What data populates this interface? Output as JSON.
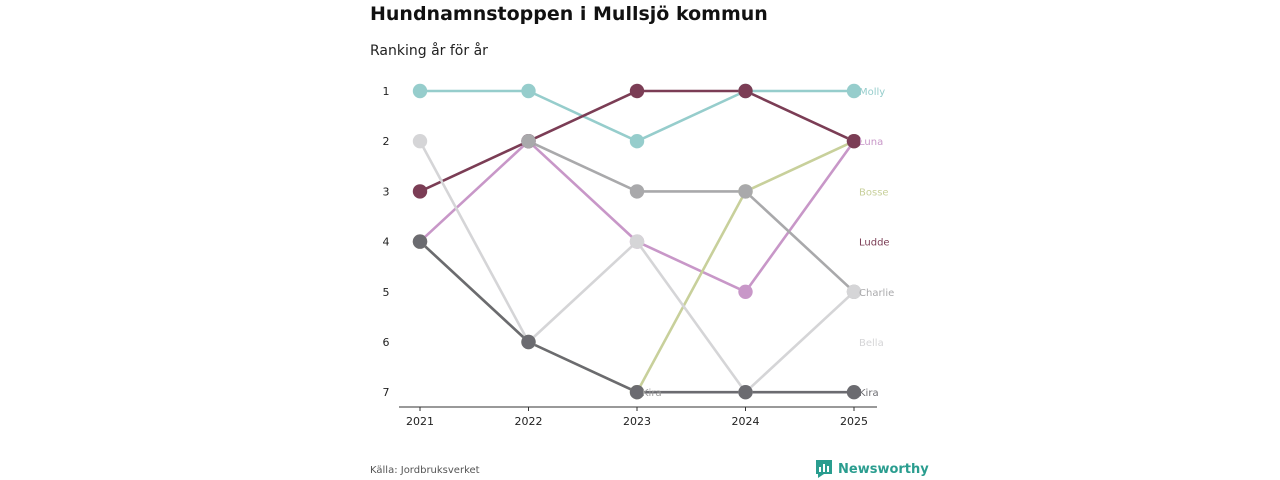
{
  "header": {
    "title": "Hundnamnstoppen i Mullsjö kommun",
    "subtitle": "Ranking år för år"
  },
  "footer": {
    "source": "Källa: Jordbruksverket",
    "brand": "Newsworthy",
    "brand_icon": "bar-chart-icon",
    "brand_color": "#2a9d8f"
  },
  "chart_data": {
    "type": "line",
    "chart_subtype": "bump",
    "x": [
      "2021",
      "2022",
      "2023",
      "2024",
      "2025"
    ],
    "y_ticks": [
      1,
      2,
      3,
      4,
      5,
      6,
      7
    ],
    "ylim": [
      1,
      7
    ],
    "y_inverted": true,
    "grid": false,
    "series": [
      {
        "name": "Molly",
        "color": "#96cdcc",
        "ranks": [
          1,
          1,
          2,
          1,
          1
        ]
      },
      {
        "name": "Luna",
        "color": "#c897c8",
        "ranks": [
          4,
          2,
          4,
          5,
          2
        ]
      },
      {
        "name": "Bosse",
        "color": "#c8d09b",
        "ranks": [
          4,
          6,
          7,
          3,
          2
        ]
      },
      {
        "name": "Ludde",
        "color": "#7b3d55",
        "ranks": [
          3,
          2,
          1,
          1,
          2
        ]
      },
      {
        "name": "Charlie",
        "color": "#a9a9ab",
        "ranks": [
          null,
          2,
          3,
          3,
          5
        ]
      },
      {
        "name": "Bella",
        "color": "#d5d5d7",
        "ranks": [
          2,
          6,
          4,
          7,
          5
        ]
      },
      {
        "name": "Kira",
        "color": "#6b6b70",
        "ranks": [
          4,
          6,
          7,
          7,
          7
        ]
      }
    ],
    "annotations": [
      {
        "text": "Kira",
        "x": "2023",
        "rank": 7
      }
    ],
    "labels": [
      {
        "text": "Molly",
        "rank": 1
      },
      {
        "text": "Luna",
        "rank": 2
      },
      {
        "text": "Bosse",
        "rank": 3
      },
      {
        "text": "Ludde",
        "rank": 4
      },
      {
        "text": "Charlie",
        "rank": 5
      },
      {
        "text": "Bella",
        "rank": 6
      },
      {
        "text": "Kira",
        "rank": 7
      }
    ]
  }
}
